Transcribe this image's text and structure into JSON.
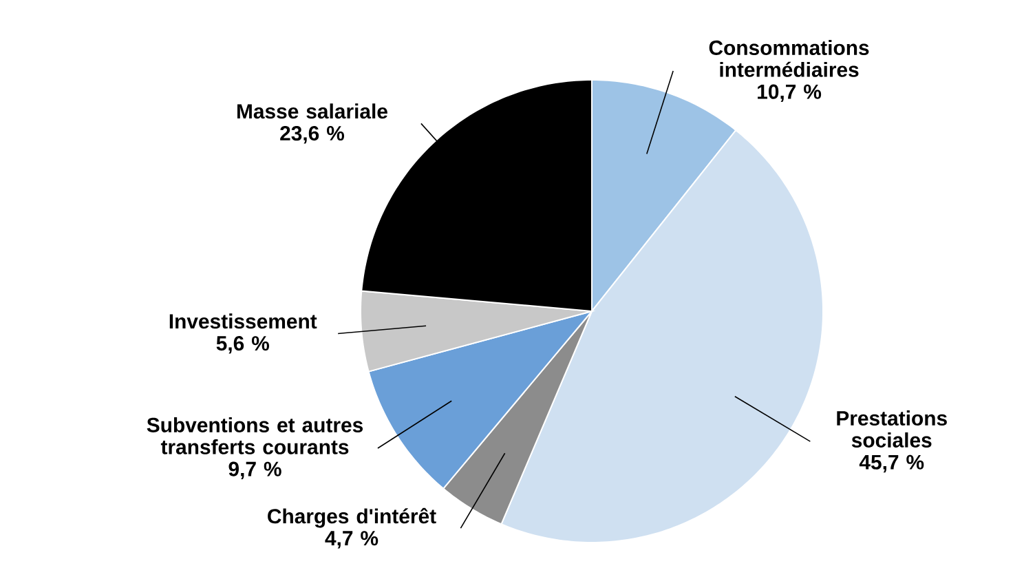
{
  "chart_data": {
    "type": "pie",
    "categories": [
      "Consommations intermédiaires",
      "Prestations sociales",
      "Charges d'intérêt",
      "Subventions et autres transferts courants",
      "Investissement",
      "Masse salariale"
    ],
    "values": [
      10.7,
      45.7,
      4.7,
      9.7,
      5.6,
      23.6
    ],
    "value_labels": [
      "10,7 %",
      "45,7 %",
      "4,7 %",
      "9,7 %",
      "5,6 %",
      "23,6 %"
    ],
    "colors": [
      "#9dc3e6",
      "#cfe0f1",
      "#8c8c8c",
      "#6a9fd8",
      "#c8c8c8",
      "#000000"
    ]
  }
}
